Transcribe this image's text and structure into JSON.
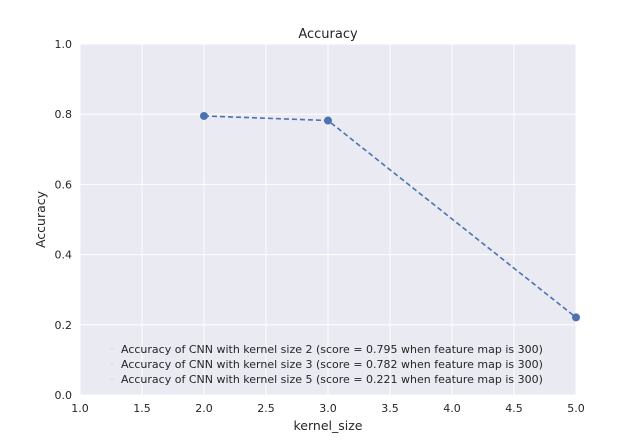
{
  "chart_data": {
    "type": "line",
    "title": "Accuracy",
    "xlabel": "kernel_size",
    "ylabel": "Accuracy",
    "xlim": [
      1.0,
      5.0
    ],
    "ylim": [
      0.0,
      1.0
    ],
    "xticks": [
      "1.0",
      "1.5",
      "2.0",
      "2.5",
      "3.0",
      "3.5",
      "4.0",
      "4.5",
      "5.0"
    ],
    "yticks": [
      "0.0",
      "0.2",
      "0.4",
      "0.6",
      "0.8",
      "1.0"
    ],
    "grid": true,
    "background": "#eaeaf2",
    "line_color": "#4c72b0",
    "line_style": "dashed",
    "legend_position": "lower-center",
    "x": [
      2,
      3,
      5
    ],
    "values": [
      0.795,
      0.782,
      0.221
    ],
    "legend": [
      "Accuracy of CNN with kernel size 2 (score = 0.795  when feature map is 300)",
      "Accuracy of CNN with kernel size 3 (score = 0.782  when feature map is 300)",
      "Accuracy of CNN with kernel size 5 (score = 0.221  when feature map is 300)"
    ]
  }
}
